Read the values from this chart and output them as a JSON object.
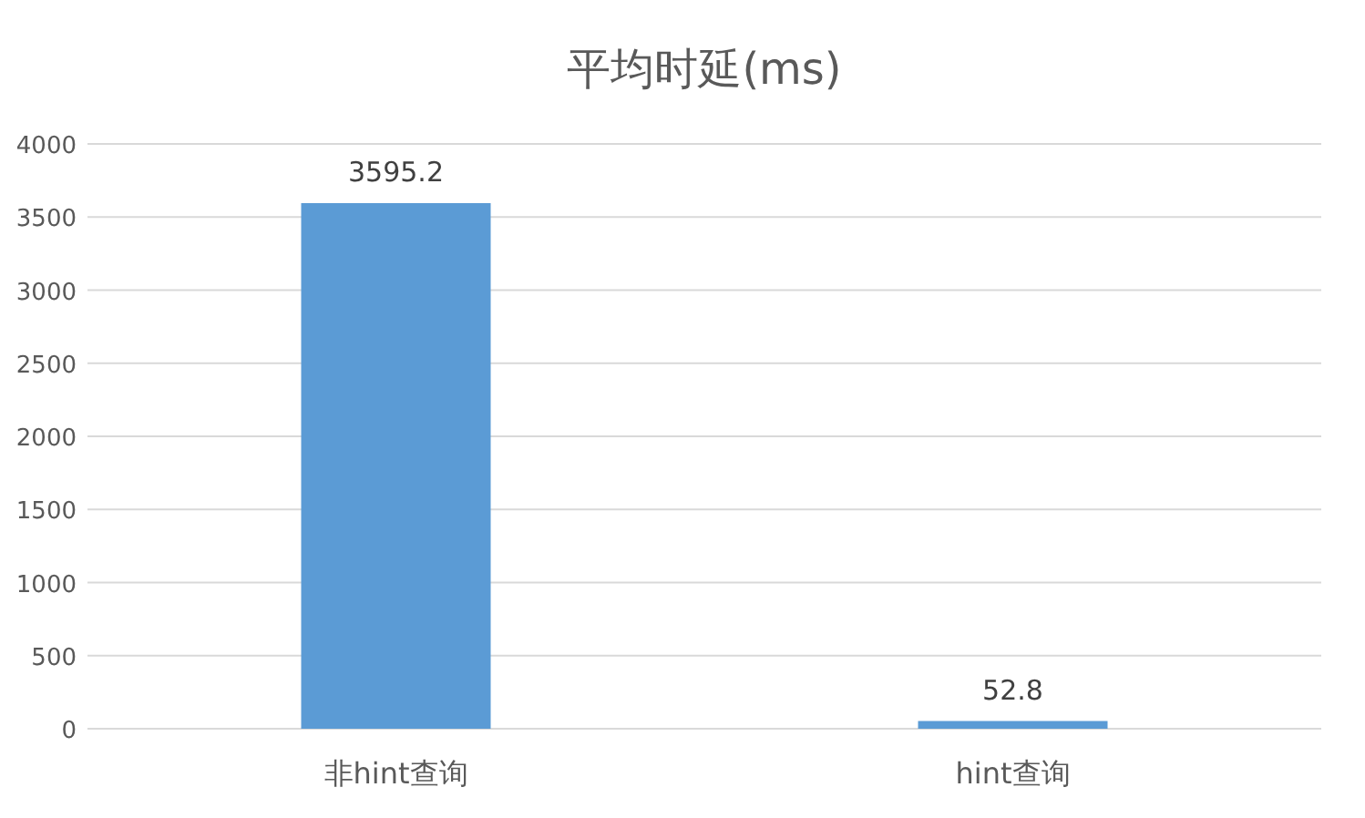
{
  "chart_data": {
    "type": "bar",
    "title": "平均时延(ms)",
    "categories": [
      "非hint查询",
      "hint查询"
    ],
    "values": [
      3595.2,
      52.8
    ],
    "color": "#5b9bd5",
    "ylim": [
      0,
      4000
    ],
    "yticks": [
      0,
      500,
      1000,
      1500,
      2000,
      2500,
      3000,
      3500,
      4000
    ],
    "grid": "y",
    "data_labels": true
  }
}
